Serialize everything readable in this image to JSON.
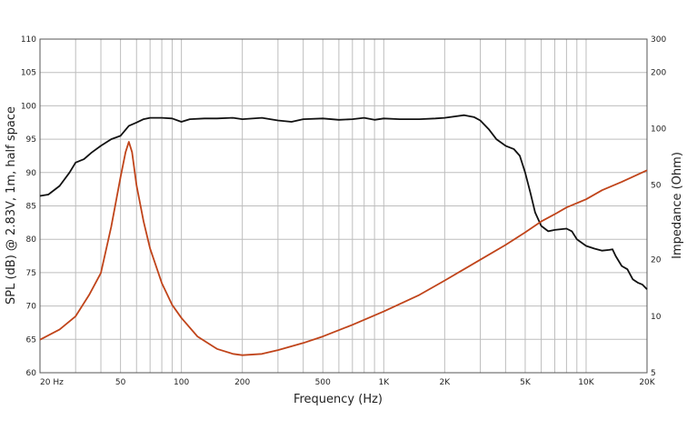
{
  "chart_data": {
    "type": "line",
    "title": "",
    "xlabel": "Frequency (Hz)",
    "ylabel_left": "SPL (dB) @ 2.83V, 1m, half space",
    "ylabel_right": "Impedance (Ohm)",
    "x_scale": "log",
    "xlim": [
      20,
      20000
    ],
    "ylim_left": [
      60,
      110
    ],
    "ylim_right": [
      5,
      300
    ],
    "y_right_scale": "log",
    "grid": true,
    "x_ticks": [
      {
        "value": 20,
        "label": "20  Hz"
      },
      {
        "value": 50,
        "label": "50"
      },
      {
        "value": 100,
        "label": "100"
      },
      {
        "value": 200,
        "label": "200"
      },
      {
        "value": 500,
        "label": "500"
      },
      {
        "value": 1000,
        "label": "1K"
      },
      {
        "value": 2000,
        "label": "2K"
      },
      {
        "value": 5000,
        "label": "5K"
      },
      {
        "value": 10000,
        "label": "10K"
      },
      {
        "value": 20000,
        "label": "20K"
      }
    ],
    "y_left_ticks": [
      {
        "value": 110,
        "label": "110"
      },
      {
        "value": 105,
        "label": "105"
      },
      {
        "value": 100,
        "label": "100"
      },
      {
        "value": 95,
        "label": "95"
      },
      {
        "value": 90,
        "label": "90"
      },
      {
        "value": 85,
        "label": "85"
      },
      {
        "value": 80,
        "label": "80"
      },
      {
        "value": 75,
        "label": "75"
      },
      {
        "value": 70,
        "label": "70"
      },
      {
        "value": 65,
        "label": "65"
      },
      {
        "value": 60,
        "label": "60"
      }
    ],
    "y_right_ticks": [
      {
        "value": 300,
        "label": "300"
      },
      {
        "value": 200,
        "label": "200"
      },
      {
        "value": 100,
        "label": "100"
      },
      {
        "value": 50,
        "label": "50"
      },
      {
        "value": 20,
        "label": "20"
      },
      {
        "value": 10,
        "label": "10"
      },
      {
        "value": 5,
        "label": "5"
      }
    ],
    "series": [
      {
        "axis": "left",
        "color": "#111111",
        "x": [
          20,
          22,
          25,
          28,
          30,
          33,
          36,
          40,
          45,
          50,
          55,
          60,
          65,
          70,
          80,
          90,
          100,
          110,
          130,
          150,
          180,
          200,
          250,
          300,
          350,
          400,
          500,
          600,
          700,
          800,
          900,
          1000,
          1200,
          1500,
          1800,
          2000,
          2500,
          2800,
          3000,
          3300,
          3600,
          4000,
          4400,
          4700,
          5000,
          5300,
          5600,
          6000,
          6500,
          7000,
          8000,
          8500,
          9000,
          10000,
          11000,
          12000,
          13000,
          13500,
          14000,
          15000,
          16000,
          17000,
          18000,
          19000,
          20000
        ],
        "y": [
          86.5,
          86.7,
          88,
          90,
          91.5,
          92,
          93,
          94,
          95,
          95.5,
          97,
          97.5,
          98,
          98.2,
          98.2,
          98.1,
          97.6,
          98,
          98.1,
          98.1,
          98.2,
          98,
          98.2,
          97.8,
          97.6,
          98,
          98.1,
          97.9,
          98,
          98.2,
          97.9,
          98.1,
          98,
          98,
          98.1,
          98.2,
          98.6,
          98.3,
          97.8,
          96.5,
          95,
          94,
          93.5,
          92.5,
          90,
          87,
          84,
          82,
          81.2,
          81.4,
          81.6,
          81.2,
          80,
          79,
          78.6,
          78.3,
          78.4,
          78.5,
          77.5,
          76,
          75.5,
          74,
          73.5,
          73.2,
          72.5
        ]
      },
      {
        "axis": "right",
        "color": "#c0441a",
        "x": [
          20,
          25,
          30,
          35,
          40,
          45,
          50,
          53,
          55,
          57,
          60,
          65,
          70,
          80,
          90,
          100,
          120,
          150,
          180,
          200,
          250,
          300,
          400,
          500,
          700,
          1000,
          1500,
          2000,
          3000,
          4000,
          5000,
          6000,
          7000,
          8000,
          10000,
          12000,
          15000,
          20000
        ],
        "y": [
          7.5,
          8.5,
          10,
          13,
          17,
          30,
          55,
          75,
          85,
          75,
          50,
          32,
          23,
          15,
          11.5,
          9.8,
          7.8,
          6.7,
          6.3,
          6.2,
          6.3,
          6.6,
          7.2,
          7.8,
          9,
          10.6,
          13,
          15.5,
          20,
          24,
          28,
          32,
          35,
          38,
          42,
          47,
          52,
          60
        ]
      }
    ]
  }
}
